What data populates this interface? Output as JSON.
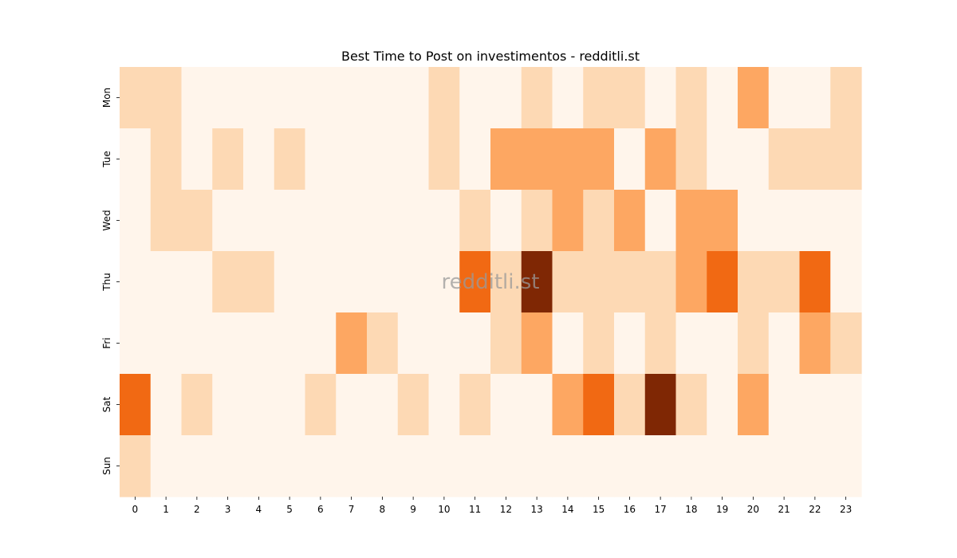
{
  "chart_data": {
    "type": "heatmap",
    "title": "Best Time to Post on investimentos - redditli.st",
    "xlabel": "",
    "ylabel": "",
    "x_categories": [
      "0",
      "1",
      "2",
      "3",
      "4",
      "5",
      "6",
      "7",
      "8",
      "9",
      "10",
      "11",
      "12",
      "13",
      "14",
      "15",
      "16",
      "17",
      "18",
      "19",
      "20",
      "21",
      "22",
      "23"
    ],
    "y_categories": [
      "Mon",
      "Tue",
      "Wed",
      "Thu",
      "Fri",
      "Sat",
      "Sun"
    ],
    "values": [
      [
        1,
        1,
        0,
        0,
        0,
        0,
        0,
        0,
        0,
        0,
        1,
        0,
        0,
        1,
        0,
        1,
        1,
        0,
        1,
        0,
        2,
        0,
        0,
        1
      ],
      [
        0,
        1,
        0,
        1,
        0,
        1,
        0,
        0,
        0,
        0,
        1,
        0,
        2,
        2,
        2,
        2,
        0,
        2,
        1,
        0,
        0,
        1,
        1,
        1
      ],
      [
        0,
        1,
        1,
        0,
        0,
        0,
        0,
        0,
        0,
        0,
        0,
        1,
        0,
        1,
        2,
        1,
        2,
        0,
        2,
        2,
        0,
        0,
        0,
        0
      ],
      [
        0,
        0,
        0,
        1,
        1,
        0,
        0,
        0,
        0,
        0,
        0,
        3,
        1,
        5,
        1,
        1,
        1,
        1,
        2,
        3,
        1,
        1,
        3,
        0
      ],
      [
        0,
        0,
        0,
        0,
        0,
        0,
        0,
        2,
        1,
        0,
        0,
        0,
        1,
        2,
        0,
        1,
        0,
        1,
        0,
        0,
        1,
        0,
        2,
        1
      ],
      [
        3,
        0,
        1,
        0,
        0,
        0,
        1,
        0,
        0,
        1,
        0,
        1,
        0,
        0,
        2,
        3,
        1,
        5,
        1,
        0,
        2,
        0,
        0,
        0
      ],
      [
        1,
        0,
        0,
        0,
        0,
        0,
        0,
        0,
        0,
        0,
        0,
        0,
        0,
        0,
        0,
        0,
        0,
        0,
        0,
        0,
        0,
        0,
        0,
        0
      ]
    ],
    "colormap": [
      "#fff5eb",
      "#fdd9b4",
      "#fda762",
      "#f16913",
      "#c44103",
      "#7f2704"
    ],
    "colorbar": false,
    "watermark": "redditli.st"
  }
}
